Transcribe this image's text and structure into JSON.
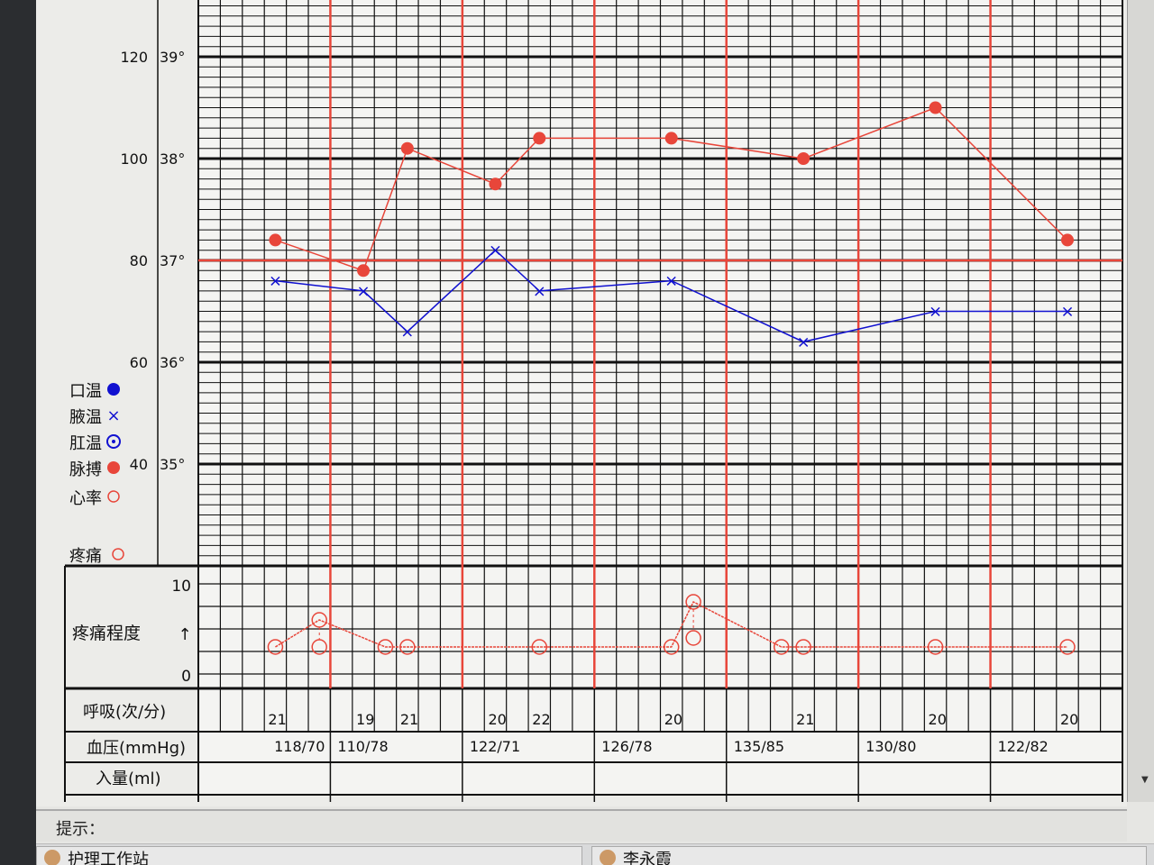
{
  "chart_data": {
    "type": "line",
    "title": "",
    "y_axes": {
      "pulse": {
        "ticks": [
          "40",
          "60",
          "80",
          "100",
          "120"
        ],
        "range": [
          40,
          120
        ]
      },
      "temperature": {
        "ticks": [
          "35°",
          "36°",
          "37°",
          "38°",
          "39°"
        ],
        "range": [
          35,
          39
        ]
      },
      "pain": {
        "label": "疼痛程度",
        "ticks": [
          "0",
          "10"
        ],
        "range": [
          0,
          10
        ],
        "arrow": "↑"
      }
    },
    "reference_line": {
      "temperature": 37,
      "color": "#e8463a"
    },
    "days": 7,
    "slots_per_day": 6,
    "legend": [
      {
        "label": "口温",
        "symbol": "filled-circle",
        "color": "#1010d0"
      },
      {
        "label": "腋温",
        "symbol": "x",
        "color": "#1010d0"
      },
      {
        "label": "肛温",
        "symbol": "dotted-circle",
        "color": "#1010d0"
      },
      {
        "label": "脉搏",
        "symbol": "filled-circle",
        "color": "#e8463a"
      },
      {
        "label": "心率",
        "symbol": "open-circle",
        "color": "#e8463a"
      },
      {
        "label": "疼痛",
        "symbol": "open-circle",
        "color": "#e8463a"
      }
    ],
    "series": [
      {
        "name": "脉搏",
        "color": "#e8463a",
        "points": [
          {
            "slot": 4,
            "value": 84
          },
          {
            "slot": 8,
            "value": 78
          },
          {
            "slot": 10,
            "value": 102
          },
          {
            "slot": 14,
            "value": 95
          },
          {
            "slot": 16,
            "value": 104
          },
          {
            "slot": 22,
            "value": 104
          },
          {
            "slot": 28,
            "value": 100
          },
          {
            "slot": 34,
            "value": 110
          },
          {
            "slot": 40,
            "value": 84
          }
        ]
      },
      {
        "name": "腋温",
        "color": "#1010d0",
        "points": [
          {
            "slot": 4,
            "value": 36.8
          },
          {
            "slot": 8,
            "value": 36.7
          },
          {
            "slot": 10,
            "value": 36.3
          },
          {
            "slot": 14,
            "value": 37.1
          },
          {
            "slot": 16,
            "value": 36.7
          },
          {
            "slot": 22,
            "value": 36.8
          },
          {
            "slot": 28,
            "value": 36.2
          },
          {
            "slot": 34,
            "value": 36.5
          },
          {
            "slot": 40,
            "value": 36.5
          }
        ]
      },
      {
        "name": "疼痛",
        "color": "#e8463a",
        "points": [
          {
            "slot": 4,
            "value": 3
          },
          {
            "slot": 6,
            "value": 6
          },
          {
            "slot": 9,
            "value": 3
          },
          {
            "slot": 10,
            "value": 3
          },
          {
            "slot": 16,
            "value": 3
          },
          {
            "slot": 22,
            "value": 3
          },
          {
            "slot": 23,
            "value": 8
          },
          {
            "slot": 27,
            "value": 3
          },
          {
            "slot": 28,
            "value": 3
          },
          {
            "slot": 34,
            "value": 3
          },
          {
            "slot": 40,
            "value": 3
          }
        ],
        "reassessed": [
          {
            "slot": 6,
            "value": 3
          },
          {
            "slot": 23,
            "value": 4
          }
        ]
      }
    ]
  },
  "rows": {
    "respiration": {
      "label": "呼吸(次/分)",
      "values": [
        {
          "slot": 4,
          "value": "21"
        },
        {
          "slot": 8,
          "value": "19"
        },
        {
          "slot": 10,
          "value": "21"
        },
        {
          "slot": 14,
          "value": "20"
        },
        {
          "slot": 16,
          "value": "22"
        },
        {
          "slot": 22,
          "value": "20"
        },
        {
          "slot": 28,
          "value": "21"
        },
        {
          "slot": 34,
          "value": "20"
        },
        {
          "slot": 40,
          "value": "20"
        }
      ]
    },
    "blood_pressure": {
      "label": "血压(mmHg)",
      "values": [
        {
          "day": 1,
          "align": "right",
          "value": "118/70"
        },
        {
          "day": 2,
          "align": "left",
          "value": "110/78"
        },
        {
          "day": 3,
          "align": "left",
          "value": "122/71"
        },
        {
          "day": 4,
          "align": "left",
          "value": "126/78"
        },
        {
          "day": 5,
          "align": "left",
          "value": "135/85"
        },
        {
          "day": 6,
          "align": "left",
          "value": "130/80"
        },
        {
          "day": 7,
          "align": "left",
          "value": "122/82"
        }
      ]
    },
    "intake": {
      "label": "入量(ml)"
    }
  },
  "status": {
    "hint_label": "提示："
  },
  "taskbar": {
    "items": [
      "护理工作站",
      "李永霞"
    ]
  }
}
